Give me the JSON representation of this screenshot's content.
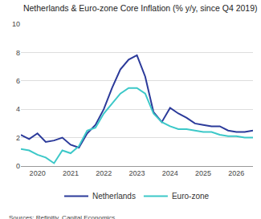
{
  "chart_data": {
    "type": "line",
    "title": "Netherlands & Euro-zone Core Inflation (% y/y, since Q4 2019)",
    "source": "Sources: Refinitiv, Capital Economics",
    "categories": [
      null,
      null,
      "2020",
      null,
      null,
      null,
      "2021",
      null,
      null,
      null,
      "2022",
      null,
      null,
      null,
      "2023",
      null,
      null,
      null,
      "2024",
      null,
      null,
      null,
      "2025",
      null,
      null,
      null,
      "2026",
      null,
      null
    ],
    "series": [
      {
        "name": "Netherlands",
        "color": "#2b3a9a",
        "values": [
          2.2,
          1.9,
          2.3,
          1.7,
          1.8,
          2.0,
          1.5,
          1.3,
          2.3,
          2.9,
          4.0,
          5.5,
          6.8,
          7.5,
          7.8,
          6.3,
          3.8,
          3.1,
          4.1,
          3.7,
          3.4,
          3.0,
          2.9,
          2.8,
          2.8,
          2.5,
          2.4,
          2.4,
          2.5
        ]
      },
      {
        "name": "Euro-zone",
        "color": "#3cc8c8",
        "values": [
          1.2,
          1.1,
          0.8,
          0.6,
          0.2,
          1.1,
          0.9,
          1.4,
          2.5,
          2.7,
          3.7,
          4.4,
          5.1,
          5.5,
          5.5,
          5.1,
          3.7,
          3.1,
          2.8,
          2.6,
          2.6,
          2.5,
          2.4,
          2.4,
          2.2,
          2.1,
          2.1,
          2.0,
          2.0
        ]
      }
    ],
    "ylim": [
      0,
      10
    ],
    "yticks": [
      0,
      2,
      4,
      6,
      8,
      10
    ],
    "grid": true,
    "legend": "bottom"
  }
}
